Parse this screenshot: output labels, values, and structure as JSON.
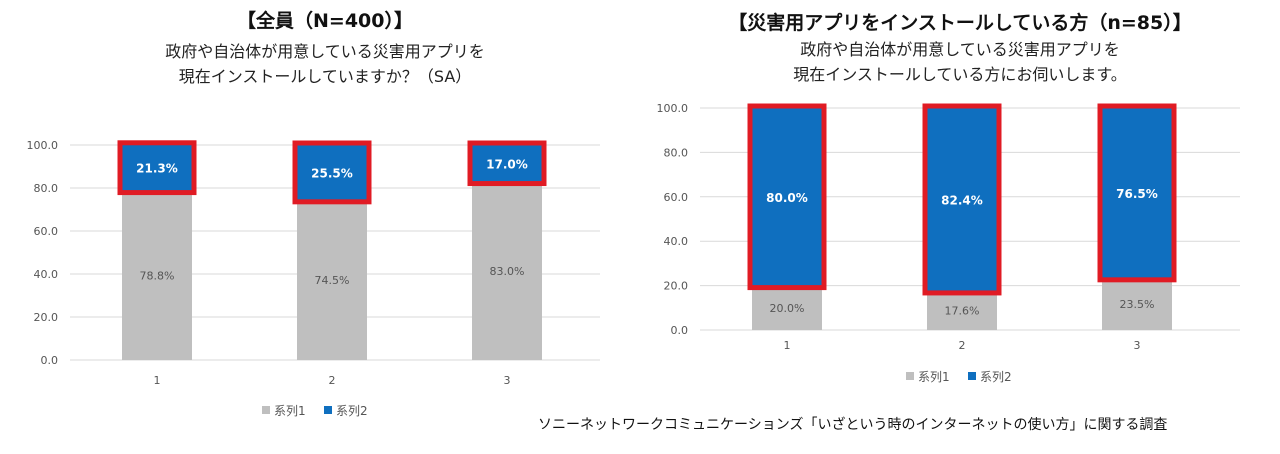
{
  "source_note": "ソニーネットワークコミュニケーションズ「いざという時のインターネットの使い方」に関する調査",
  "chart_data": [
    {
      "type": "bar",
      "stacked": true,
      "title": "【全員（N=400）】",
      "subtitle_lines": [
        "政府や自治体が用意している災害用アプリを",
        "現在インストールしていますか？（SA）"
      ],
      "categories": [
        "1",
        "2",
        "3"
      ],
      "ylim": [
        0,
        100
      ],
      "yticks": [
        "0.0",
        "20.0",
        "40.0",
        "60.0",
        "80.0",
        "100.0"
      ],
      "series": [
        {
          "name": "系列1",
          "values": [
            78.8,
            74.5,
            83.0
          ],
          "labels": [
            "78.8%",
            "74.5%",
            "83.0%"
          ],
          "color": "#bfbfbf"
        },
        {
          "name": "系列2",
          "values": [
            21.3,
            25.5,
            17.0
          ],
          "labels": [
            "21.3%",
            "25.5%",
            "17.0%"
          ],
          "color": "#0f6fbf"
        }
      ],
      "highlight_color": "#e01b24",
      "legend": "bottom"
    },
    {
      "type": "bar",
      "stacked": true,
      "title": "【災害用アプリをインストールしている方（n=85）】",
      "subtitle_lines": [
        "政府や自治体が用意している災害用アプリを",
        "現在インストールしている方にお伺いします。"
      ],
      "categories": [
        "1",
        "2",
        "3"
      ],
      "ylim": [
        0,
        100
      ],
      "yticks": [
        "0.0",
        "20.0",
        "40.0",
        "60.0",
        "80.0",
        "100.0"
      ],
      "series": [
        {
          "name": "系列1",
          "values": [
            20.0,
            17.6,
            23.5
          ],
          "labels": [
            "20.0%",
            "17.6%",
            "23.5%"
          ],
          "color": "#bfbfbf"
        },
        {
          "name": "系列2",
          "values": [
            80.0,
            82.4,
            76.5
          ],
          "labels": [
            "80.0%",
            "82.4%",
            "76.5%"
          ],
          "color": "#0f6fbf"
        }
      ],
      "highlight_color": "#e01b24",
      "legend": "bottom"
    }
  ]
}
